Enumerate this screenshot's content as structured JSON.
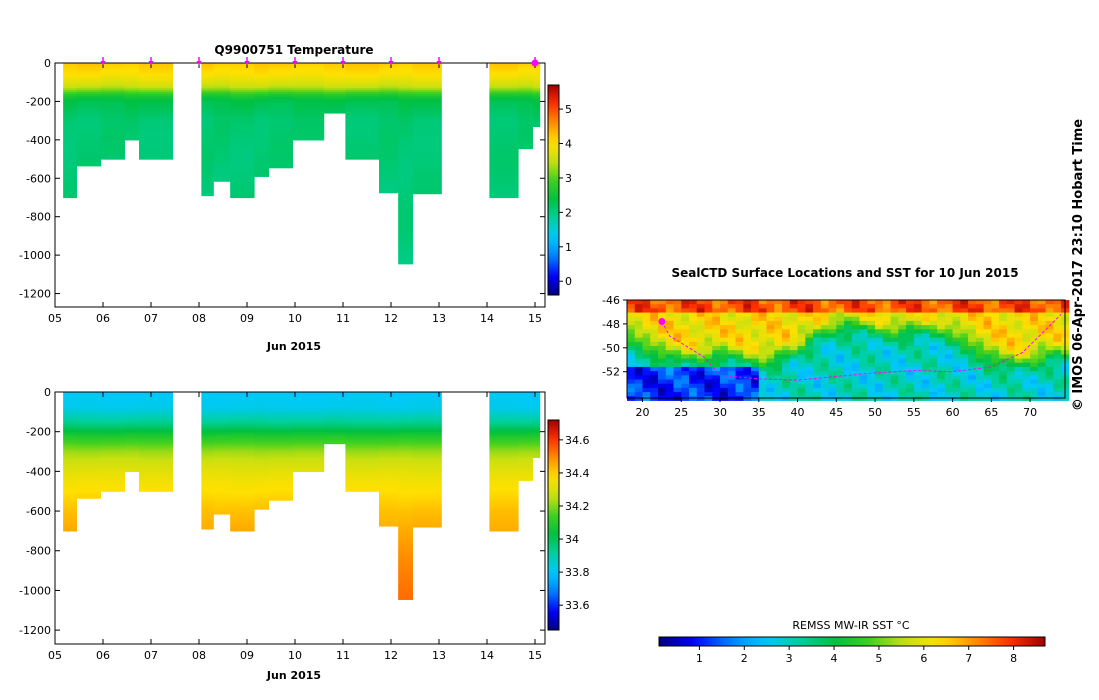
{
  "temperature_plot": {
    "title": "Q9900751  Temperature",
    "x_label": "Jun 2015",
    "x_ticks": [
      "05",
      "06",
      "07",
      "08",
      "09",
      "10",
      "11",
      "12",
      "13",
      "14",
      "15"
    ],
    "y_ticks": [
      "0",
      "-200",
      "-400",
      "-600",
      "-800",
      "-1000",
      "-1200"
    ],
    "colorbar_ticks": [
      "0",
      "1",
      "2",
      "3",
      "4",
      "5"
    ]
  },
  "salinity_plot": {
    "x_label": "Jun 2015",
    "x_ticks": [
      "05",
      "06",
      "07",
      "08",
      "09",
      "10",
      "11",
      "12",
      "13",
      "14",
      "15"
    ],
    "y_ticks": [
      "0",
      "-200",
      "-400",
      "-600",
      "-800",
      "-1000",
      "-1200"
    ],
    "colorbar_ticks": [
      "33.6",
      "33.8",
      "34",
      "34.2",
      "34.4",
      "34.6"
    ]
  },
  "map": {
    "title": "SealCTD Surface Locations and SST for 10 Jun 2015",
    "x_ticks": [
      "20",
      "25",
      "30",
      "35",
      "40",
      "45",
      "50",
      "55",
      "60",
      "65",
      "70"
    ],
    "y_ticks": [
      "-46",
      "-48",
      "-50",
      "-52"
    ],
    "colorbar_label": "REMSS MW-IR SST °C",
    "colorbar_ticks": [
      "1",
      "2",
      "3",
      "4",
      "5",
      "6",
      "7",
      "8"
    ]
  },
  "copyright": "© IMOS 06-Apr-2017 23:10 Hobart Time",
  "colors": {
    "scale": [
      "#00007f",
      "#0000ff",
      "#0080ff",
      "#00c8ff",
      "#00d0a0",
      "#00c040",
      "#40d020",
      "#c8e010",
      "#ffe000",
      "#ff9000",
      "#ff3000",
      "#a00000"
    ],
    "magenta": "#ff00ff"
  },
  "chart_data": [
    {
      "type": "heatmap",
      "title": "Q9900751  Temperature",
      "xlabel": "Jun 2015",
      "ylabel": "",
      "xlim": [
        5,
        15
      ],
      "ylim": [
        -1270,
        0
      ],
      "zlim": [
        -0.4,
        5.7
      ],
      "profile_marker_days": [
        6.0,
        7.0,
        8.0,
        9.0,
        10.0,
        11.0,
        12.0,
        13.0,
        15.0
      ],
      "profiles": [
        {
          "x0": 5.17,
          "x1": 5.45,
          "max_depth": 700
        },
        {
          "x0": 5.45,
          "x1": 5.95,
          "max_depth": 535
        },
        {
          "x0": 5.95,
          "x1": 6.45,
          "max_depth": 500
        },
        {
          "x0": 6.45,
          "x1": 6.75,
          "max_depth": 400
        },
        {
          "x0": 6.75,
          "x1": 7.45,
          "max_depth": 500
        },
        {
          "x0": 8.05,
          "x1": 8.3,
          "max_depth": 690
        },
        {
          "x0": 8.3,
          "x1": 8.65,
          "max_depth": 615
        },
        {
          "x0": 8.65,
          "x1": 9.15,
          "max_depth": 700
        },
        {
          "x0": 9.15,
          "x1": 9.45,
          "max_depth": 590
        },
        {
          "x0": 9.45,
          "x1": 9.95,
          "max_depth": 545
        },
        {
          "x0": 9.95,
          "x1": 10.6,
          "max_depth": 400
        },
        {
          "x0": 10.6,
          "x1": 11.05,
          "max_depth": 260
        },
        {
          "x0": 11.05,
          "x1": 11.75,
          "max_depth": 500
        },
        {
          "x0": 11.75,
          "x1": 12.15,
          "max_depth": 675
        },
        {
          "x0": 12.15,
          "x1": 12.45,
          "max_depth": 1045
        },
        {
          "x0": 12.45,
          "x1": 13.05,
          "max_depth": 680
        },
        {
          "x0": 14.05,
          "x1": 14.65,
          "max_depth": 700
        },
        {
          "x0": 14.65,
          "x1": 14.95,
          "max_depth": 445
        },
        {
          "x0": 14.95,
          "x1": 15.1,
          "max_depth": 330
        }
      ],
      "depth_profile": {
        "depth": [
          0,
          60,
          100,
          130,
          150,
          170,
          200,
          300,
          1100
        ],
        "value": [
          4.2,
          4.0,
          3.7,
          3.4,
          3.0,
          2.6,
          2.3,
          2.1,
          2.0
        ]
      }
    },
    {
      "type": "heatmap",
      "title": "",
      "xlabel": "Jun 2015",
      "ylabel": "",
      "xlim": [
        5,
        15
      ],
      "ylim": [
        -1270,
        0
      ],
      "zlim": [
        33.45,
        34.72
      ],
      "depth_profile": {
        "depth": [
          0,
          80,
          150,
          230,
          300,
          380,
          450,
          600,
          800,
          1100
        ],
        "value": [
          33.8,
          33.82,
          33.92,
          34.1,
          34.22,
          34.3,
          34.35,
          34.42,
          34.48,
          34.55
        ]
      }
    },
    {
      "type": "heatmap",
      "title": "SealCTD Surface Locations and SST for 10 Jun 2015",
      "xlabel": "",
      "ylabel": "",
      "xlim": [
        18,
        74.5
      ],
      "ylim": [
        -54.2,
        -46
      ],
      "zlim": [
        0.1,
        8.7
      ],
      "colorbar_label": "REMSS MW-IR SST °C",
      "surface_points": [
        [
          22.5,
          -47.8
        ],
        [
          23.5,
          -49.0
        ],
        [
          26.0,
          -50.0
        ],
        [
          28.0,
          -50.8
        ],
        [
          30.0,
          -52.3
        ],
        [
          35.0,
          -52.6
        ],
        [
          40.0,
          -52.7
        ],
        [
          45.0,
          -52.4
        ],
        [
          50.0,
          -52.1
        ],
        [
          55.0,
          -51.9
        ],
        [
          60.0,
          -52.0
        ],
        [
          65.0,
          -51.6
        ],
        [
          69.0,
          -50.4
        ],
        [
          72.0,
          -48.5
        ],
        [
          74.0,
          -47.2
        ]
      ]
    }
  ]
}
